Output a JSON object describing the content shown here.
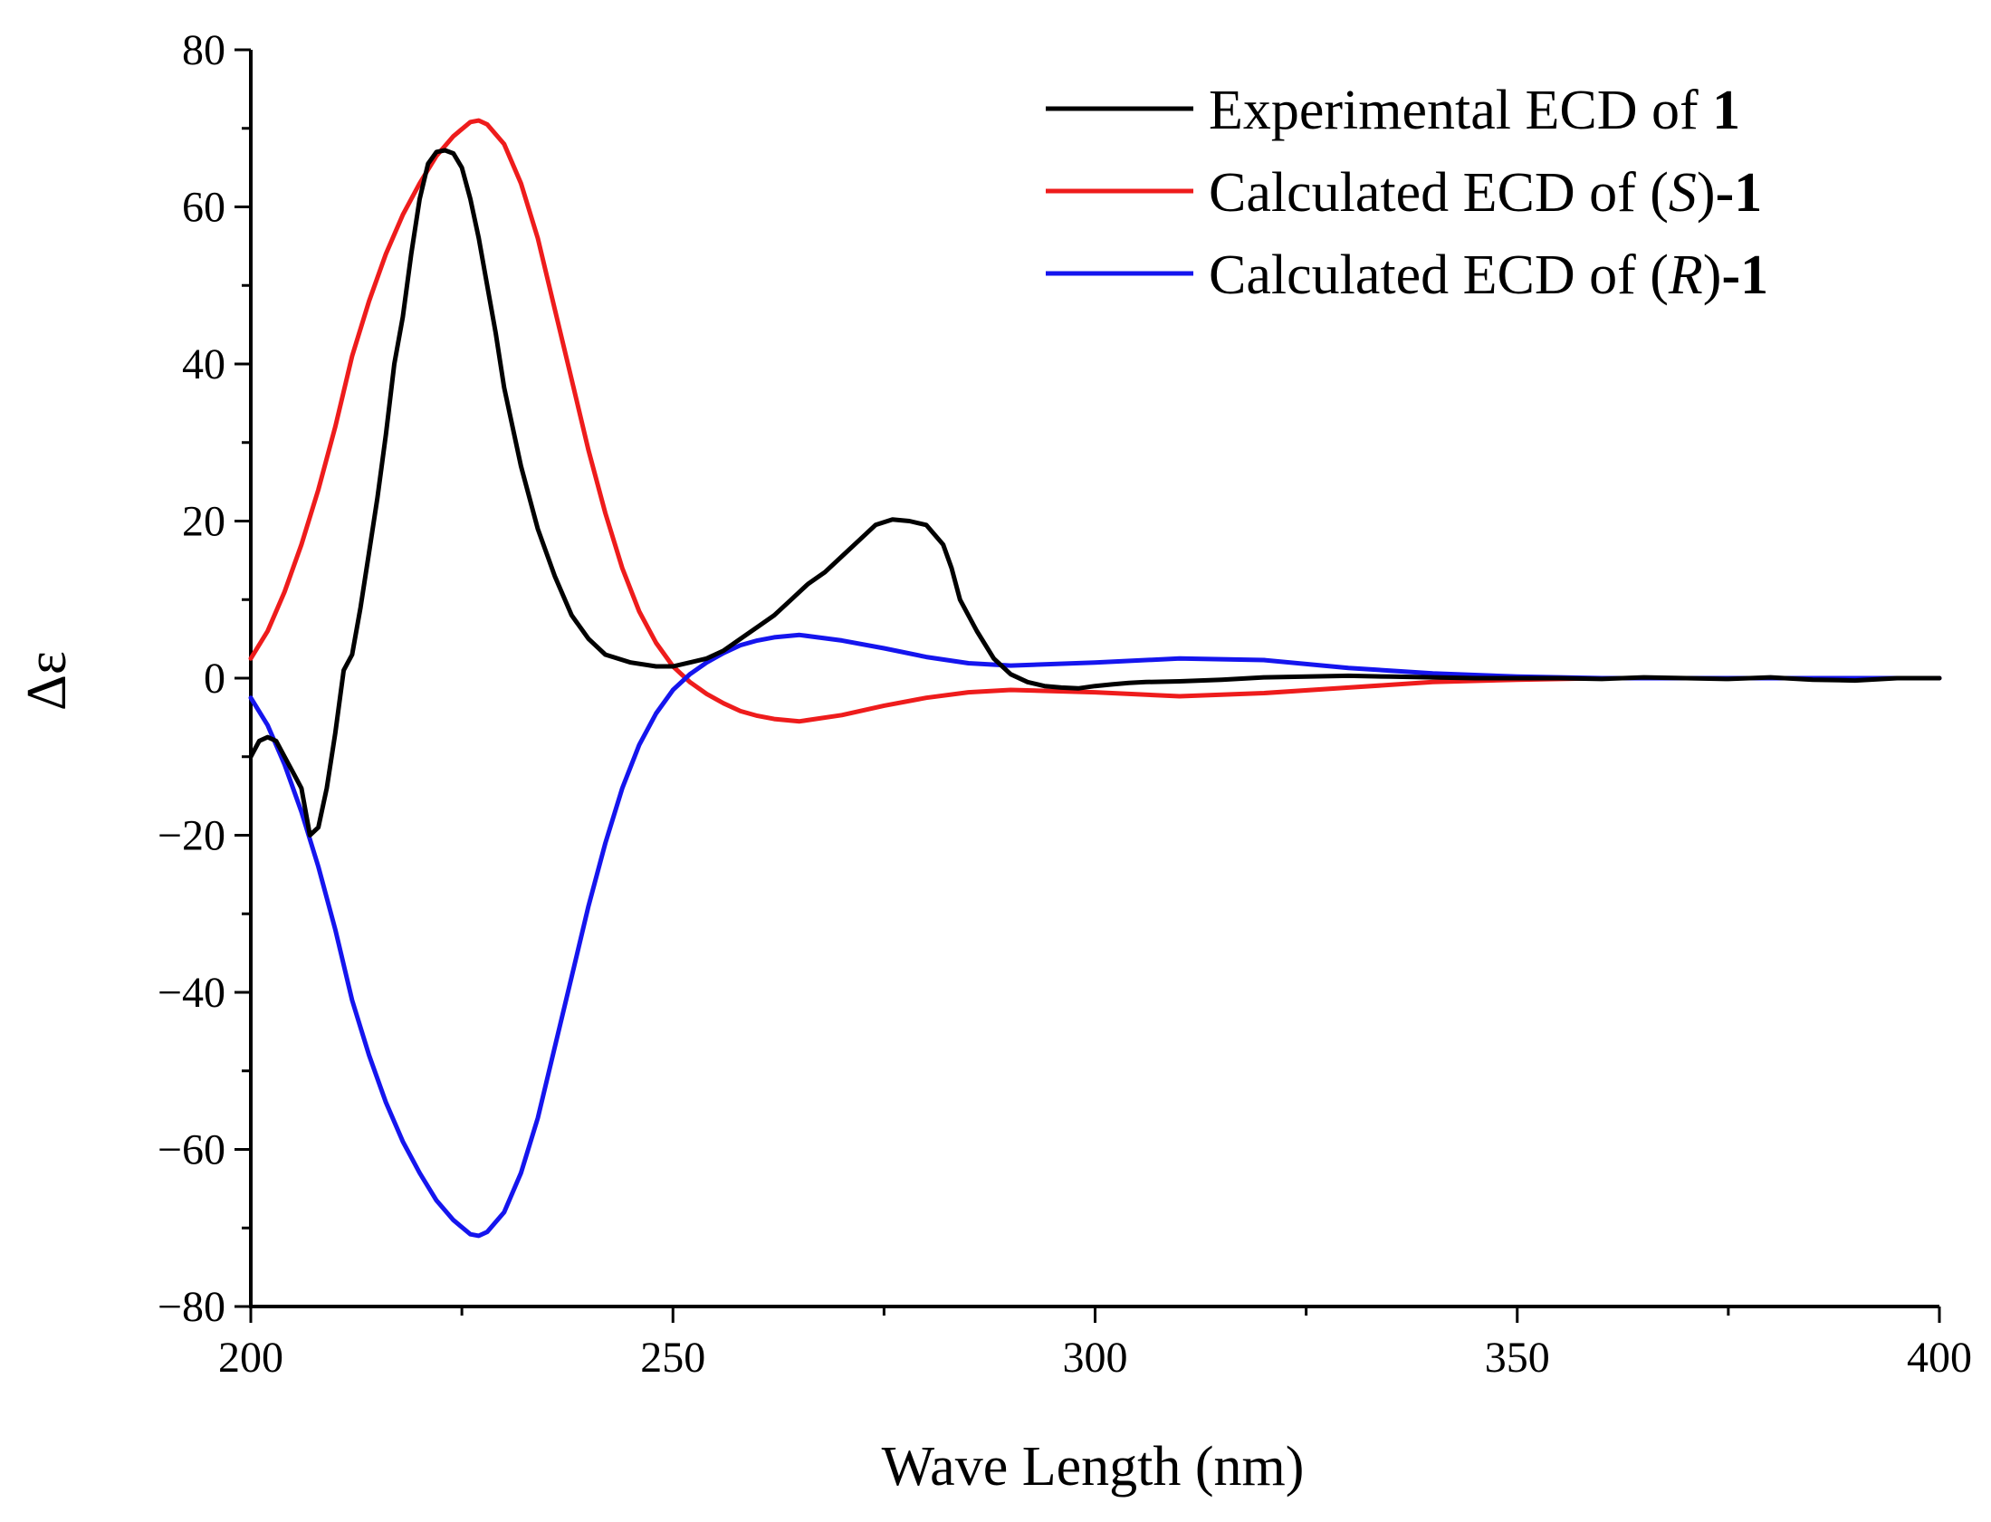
{
  "chart_data": {
    "type": "line",
    "title": "",
    "xlabel": "Wave Length (nm)",
    "ylabel": "Δε",
    "xlim": [
      200,
      400
    ],
    "ylim": [
      -80,
      80
    ],
    "xticks": [
      200,
      250,
      300,
      350,
      400
    ],
    "yticks": [
      -80,
      -60,
      -40,
      -20,
      0,
      20,
      40,
      60,
      80
    ],
    "xtick_labels": [
      "200",
      "250",
      "300",
      "350",
      "400"
    ],
    "ytick_labels": [
      "−80",
      "−60",
      "−40",
      "−20",
      "0",
      "20",
      "40",
      "60",
      "80"
    ],
    "grid": false,
    "legend_position": "top-right",
    "legend": [
      {
        "prefix": "Experimental ECD of ",
        "italic": "",
        "mid": "",
        "bold": "1"
      },
      {
        "prefix": "Calculated ECD of (",
        "italic": "S",
        "mid": ")",
        "bold": "-1"
      },
      {
        "prefix": "Calculated ECD of (",
        "italic": "R",
        "mid": ")",
        "bold": "-1"
      }
    ],
    "series": [
      {
        "name": "Experimental ECD of 1",
        "color": "#000000",
        "x": [
          200,
          201,
          202,
          203,
          204,
          205,
          206,
          207,
          208,
          209,
          210,
          211,
          212,
          213,
          214,
          215,
          216,
          217,
          218,
          219,
          220,
          221,
          222,
          223,
          224,
          225,
          226,
          227,
          228,
          229,
          230,
          232,
          234,
          236,
          238,
          240,
          242,
          245,
          248,
          250,
          252,
          254,
          256,
          258,
          260,
          262,
          264,
          266,
          268,
          270,
          272,
          274,
          276,
          278,
          280,
          282,
          283,
          284,
          286,
          288,
          290,
          292,
          294,
          296,
          298,
          300,
          302,
          304,
          306,
          310,
          315,
          320,
          325,
          330,
          335,
          340,
          345,
          350,
          355,
          360,
          365,
          370,
          375,
          380,
          385,
          390,
          395,
          400
        ],
        "y": [
          -10,
          -8,
          -7.5,
          -8,
          -10,
          -12,
          -14,
          -20,
          -19,
          -14,
          -7,
          1,
          3,
          9,
          16,
          23,
          31,
          40,
          46,
          54,
          61,
          65.5,
          67,
          67.2,
          66.8,
          65,
          61,
          56,
          50,
          44,
          37,
          27,
          19,
          13,
          8,
          5,
          3,
          2,
          1.5,
          1.5,
          2,
          2.5,
          3.5,
          5,
          6.5,
          8,
          10,
          12,
          13.5,
          15.5,
          17.5,
          19.5,
          20.2,
          20,
          19.5,
          17,
          14,
          10,
          6,
          2.5,
          0.5,
          -0.5,
          -1,
          -1.2,
          -1.3,
          -1.0,
          -0.8,
          -0.6,
          -0.5,
          -0.4,
          -0.2,
          0.1,
          0.2,
          0.3,
          0.2,
          0.1,
          0.0,
          0.0,
          0.0,
          -0.1,
          0.1,
          0.0,
          -0.1,
          0.1,
          -0.2,
          -0.3,
          0.0,
          0.0
        ]
      },
      {
        "name": "Calculated ECD of (S)-1",
        "color": "#ee1c1c",
        "x": [
          200,
          202,
          204,
          206,
          208,
          210,
          212,
          214,
          216,
          218,
          220,
          222,
          224,
          226,
          227,
          228,
          230,
          232,
          234,
          236,
          238,
          240,
          242,
          244,
          246,
          248,
          250,
          252,
          254,
          256,
          258,
          260,
          262,
          265,
          270,
          275,
          280,
          285,
          290,
          300,
          310,
          320,
          330,
          340,
          350,
          360,
          370,
          380,
          390,
          400
        ],
        "y": [
          2.5,
          6,
          11,
          17,
          24,
          32,
          41,
          48,
          54,
          59,
          63,
          66.5,
          69,
          70.8,
          71,
          70.5,
          68,
          63,
          56,
          47,
          38,
          29,
          21,
          14,
          8.5,
          4.5,
          1.5,
          -0.5,
          -2,
          -3.2,
          -4.2,
          -4.8,
          -5.2,
          -5.5,
          -4.7,
          -3.5,
          -2.5,
          -1.8,
          -1.5,
          -1.8,
          -2.3,
          -1.9,
          -1.2,
          -0.5,
          -0.2,
          0.0,
          0.0,
          0.0,
          0.0,
          0.0
        ]
      },
      {
        "name": "Calculated ECD of (R)-1",
        "color": "#1515ee",
        "x": [
          200,
          202,
          204,
          206,
          208,
          210,
          212,
          214,
          216,
          218,
          220,
          222,
          224,
          226,
          227,
          228,
          230,
          232,
          234,
          236,
          238,
          240,
          242,
          244,
          246,
          248,
          250,
          252,
          254,
          256,
          258,
          260,
          262,
          265,
          270,
          275,
          280,
          285,
          290,
          300,
          310,
          320,
          330,
          340,
          350,
          360,
          370,
          380,
          390,
          400
        ],
        "y": [
          -2.5,
          -6,
          -11,
          -17,
          -24,
          -32,
          -41,
          -48,
          -54,
          -59,
          -63,
          -66.5,
          -69,
          -70.8,
          -71,
          -70.5,
          -68,
          -63,
          -56,
          -47,
          -38,
          -29,
          -21,
          -14,
          -8.5,
          -4.5,
          -1.5,
          0.5,
          2,
          3.2,
          4.2,
          4.8,
          5.2,
          5.5,
          4.8,
          3.8,
          2.7,
          1.9,
          1.6,
          2.0,
          2.5,
          2.3,
          1.3,
          0.6,
          0.2,
          0.0,
          0.0,
          0.0,
          0.0,
          0.0
        ]
      }
    ]
  }
}
